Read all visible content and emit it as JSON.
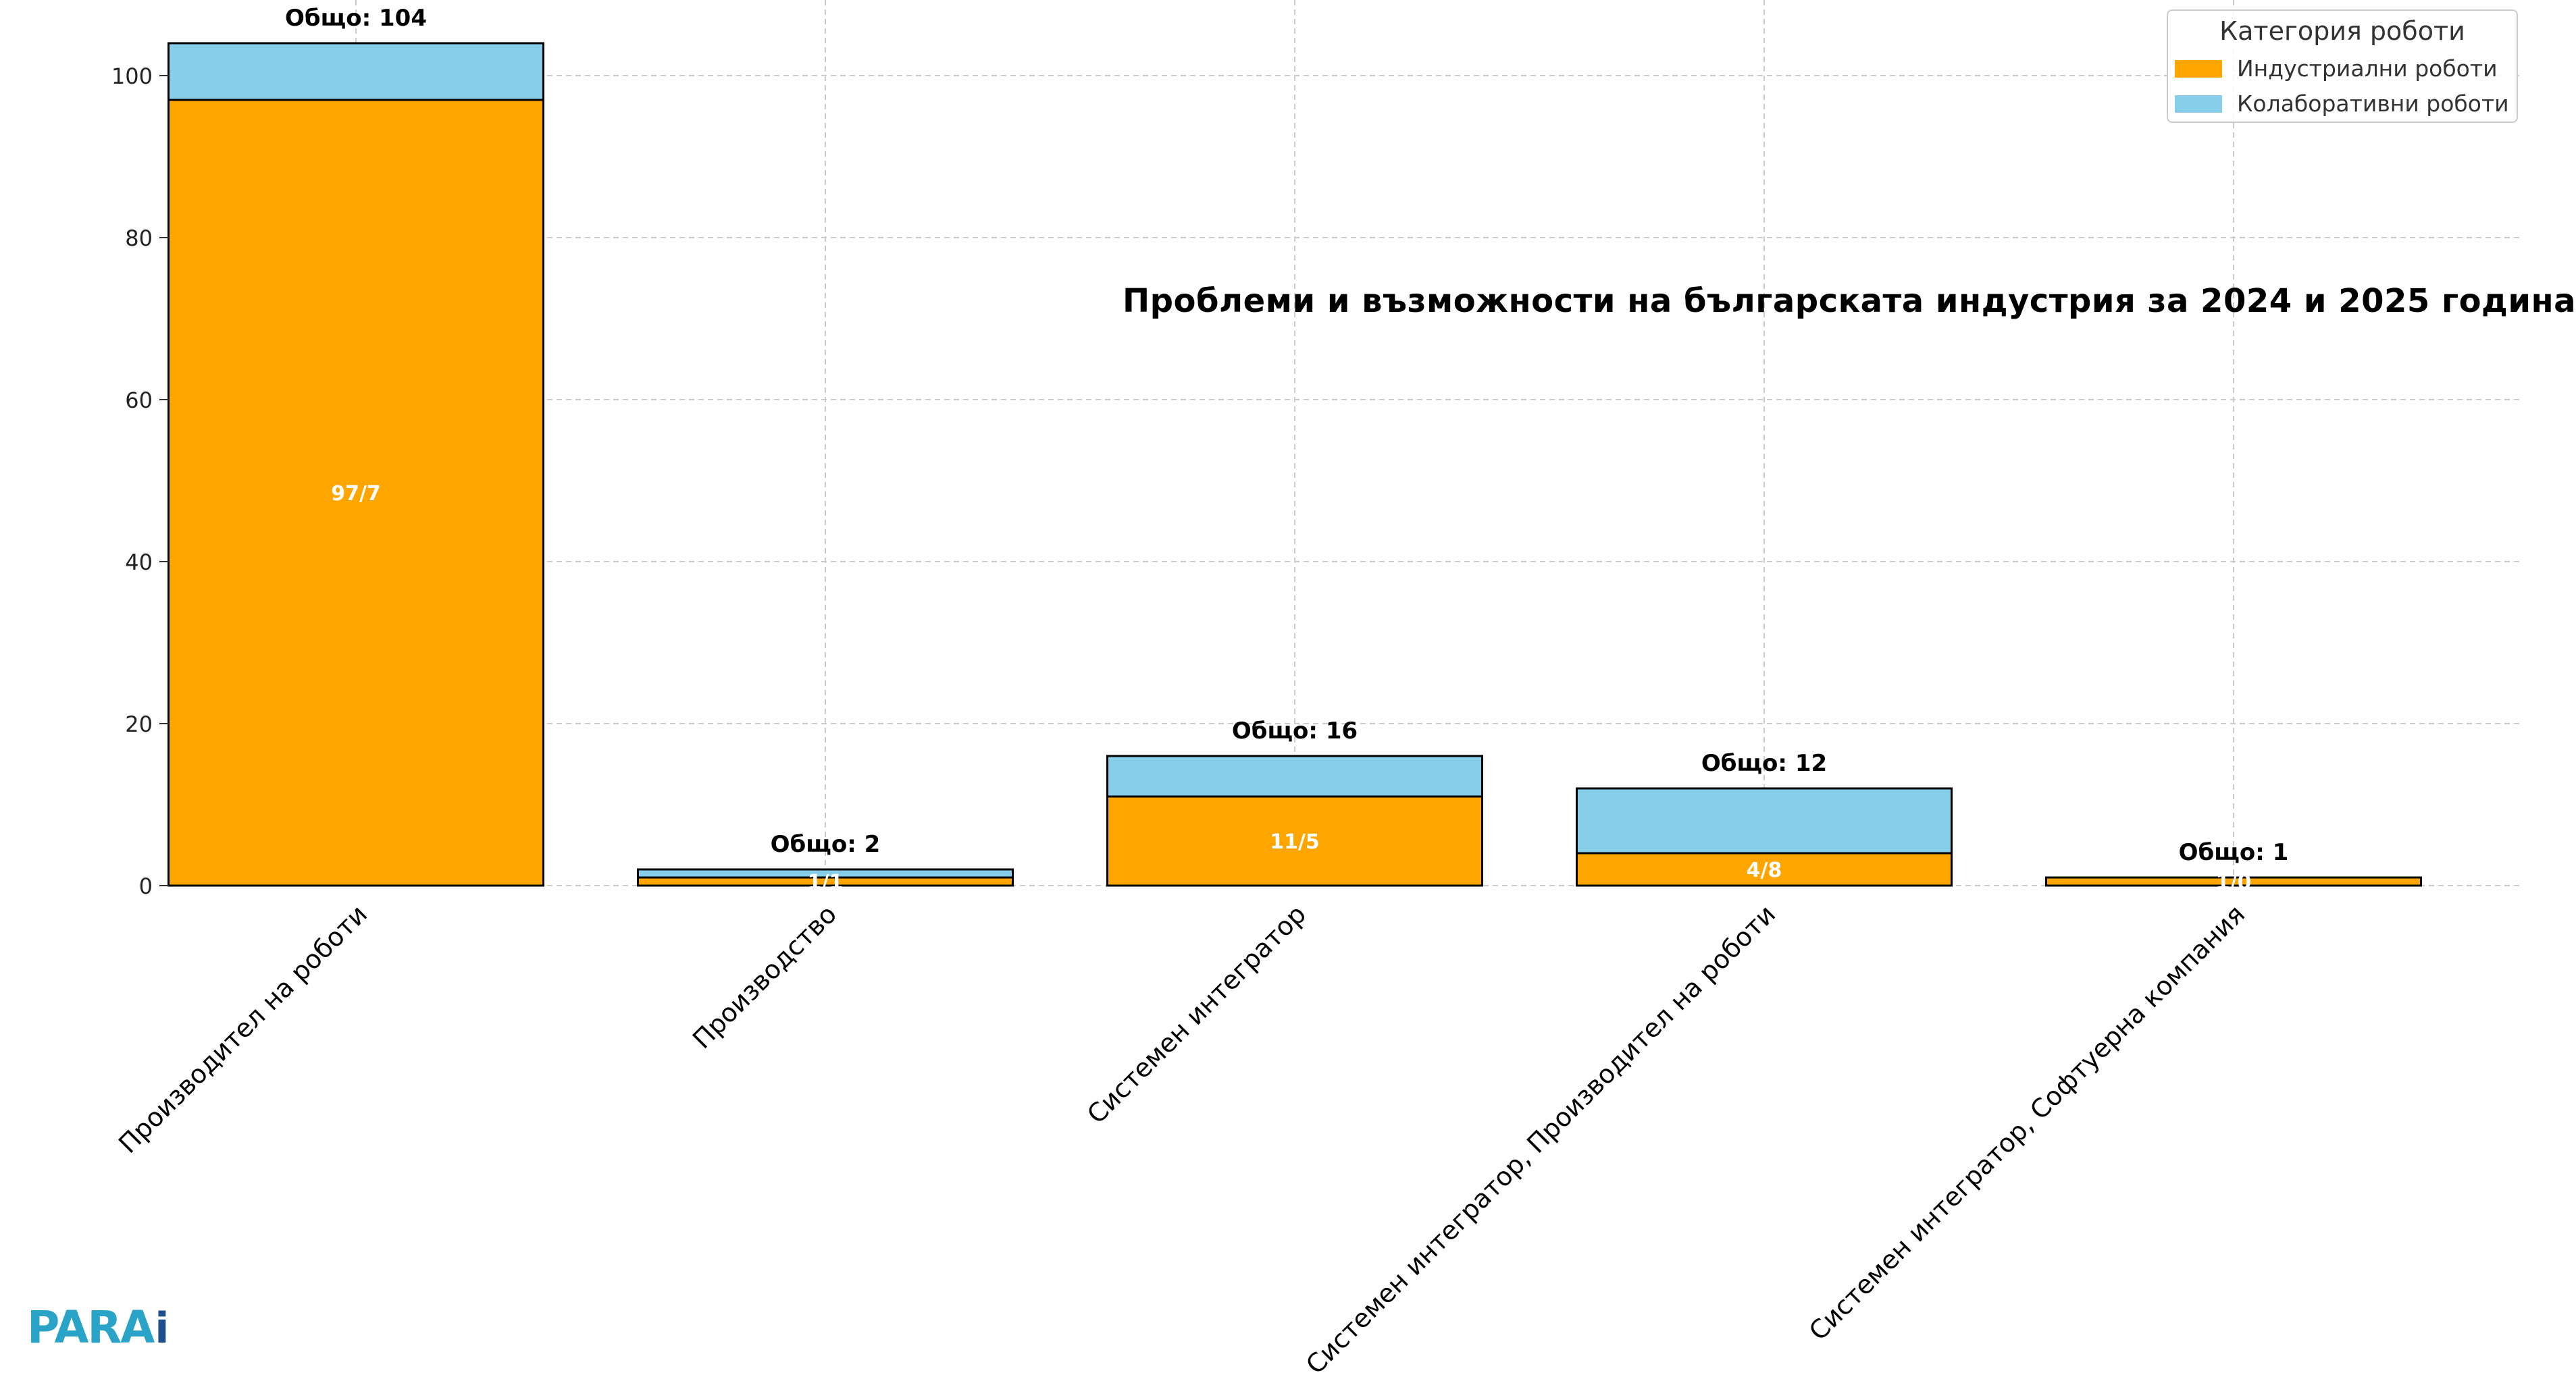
{
  "chart_data": {
    "type": "bar",
    "stacked": true,
    "title": "Проблеми и възможности на българската индустрия за 2024 и 2025 година",
    "categories": [
      "Производител на роботи",
      "Производство",
      "Системен интегратор",
      "Системен интегратор, Производител на роботи",
      "Системен интегратор, Софтуерна компания"
    ],
    "series": [
      {
        "name": "Индустриални роботи",
        "color": "#FFA500",
        "values": [
          97,
          1,
          11,
          4,
          1
        ]
      },
      {
        "name": "Колаборативни роботи",
        "color": "#87CEEB",
        "values": [
          7,
          1,
          5,
          8,
          0
        ]
      }
    ],
    "segment_labels": [
      "97/7",
      "1/1",
      "11/5",
      "4/8",
      "1/0"
    ],
    "total_labels": [
      "Общо: 104",
      "Общо: 2",
      "Общо: 16",
      "Общо: 12",
      "Общо: 1"
    ],
    "y_ticks": [
      0,
      20,
      40,
      60,
      80,
      100
    ],
    "ylim": [
      0,
      104
    ],
    "grid": true,
    "legend": {
      "title": "Категория роботи",
      "placement": "top-right"
    }
  },
  "logo": {
    "main": "PARA",
    "accent": "i"
  }
}
